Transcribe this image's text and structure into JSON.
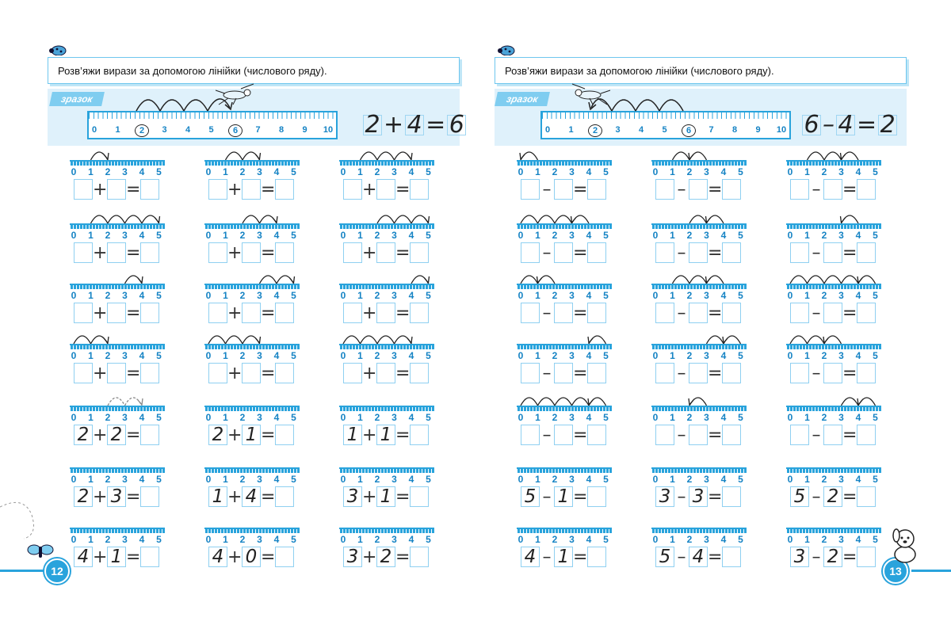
{
  "instruction": "Розв’яжи вирази за допомогою лінійки (числового ряду).",
  "sample_label": "зразок",
  "big_ruler_labels": [
    "0",
    "1",
    "2",
    "3",
    "4",
    "5",
    "6",
    "7",
    "8",
    "9",
    "10"
  ],
  "small_ruler_labels": [
    "0",
    "1",
    "2",
    "3",
    "4",
    "5"
  ],
  "left": {
    "page_number": "12",
    "sample": {
      "a": "2",
      "op": "+",
      "b": "4",
      "eq": "=",
      "result": "6",
      "circled": [
        2,
        6
      ]
    },
    "exercises": [
      [
        {
          "op": "+",
          "a": "",
          "b": "",
          "arcs": [
            [
              1,
              2
            ]
          ]
        },
        {
          "op": "+",
          "a": "",
          "b": "",
          "arcs": [
            [
              1,
              2
            ],
            [
              2,
              3
            ]
          ]
        },
        {
          "op": "+",
          "a": "",
          "b": "",
          "arcs": [
            [
              1,
              2
            ],
            [
              2,
              3
            ],
            [
              3,
              4
            ]
          ]
        }
      ],
      [
        {
          "op": "+",
          "a": "",
          "b": "",
          "arcs": [
            [
              1,
              2
            ],
            [
              2,
              3
            ],
            [
              3,
              4
            ],
            [
              4,
              5
            ]
          ]
        },
        {
          "op": "+",
          "a": "",
          "b": "",
          "arcs": [
            [
              2,
              3
            ],
            [
              3,
              4
            ]
          ]
        },
        {
          "op": "+",
          "a": "",
          "b": "",
          "arcs": [
            [
              2,
              3
            ],
            [
              3,
              4
            ],
            [
              4,
              5
            ]
          ]
        }
      ],
      [
        {
          "op": "+",
          "a": "",
          "b": "",
          "arcs": [
            [
              3,
              4
            ]
          ]
        },
        {
          "op": "+",
          "a": "",
          "b": "",
          "arcs": [
            [
              3,
              4
            ],
            [
              4,
              5
            ]
          ]
        },
        {
          "op": "+",
          "a": "",
          "b": "",
          "arcs": [
            [
              4,
              5
            ]
          ]
        }
      ],
      [
        {
          "op": "+",
          "a": "",
          "b": "",
          "arcs": [
            [
              0,
              1
            ],
            [
              1,
              2
            ]
          ]
        },
        {
          "op": "+",
          "a": "",
          "b": "",
          "arcs": [
            [
              0,
              1
            ],
            [
              1,
              2
            ],
            [
              2,
              3
            ]
          ]
        },
        {
          "op": "+",
          "a": "",
          "b": "",
          "arcs": [
            [
              0,
              1
            ],
            [
              1,
              2
            ],
            [
              2,
              3
            ],
            [
              3,
              4
            ]
          ]
        }
      ],
      [
        {
          "op": "+",
          "a": "2",
          "b": "2",
          "arcs": [
            [
              2,
              3
            ],
            [
              3,
              4
            ]
          ],
          "dashed": true
        },
        {
          "op": "+",
          "a": "2",
          "b": "1",
          "arcs": []
        },
        {
          "op": "+",
          "a": "1",
          "b": "1",
          "arcs": []
        }
      ],
      [
        {
          "op": "+",
          "a": "2",
          "b": "3",
          "arcs": []
        },
        {
          "op": "+",
          "a": "1",
          "b": "4",
          "arcs": []
        },
        {
          "op": "+",
          "a": "3",
          "b": "1",
          "arcs": []
        }
      ],
      [
        {
          "op": "+",
          "a": "4",
          "b": "1",
          "arcs": []
        },
        {
          "op": "+",
          "a": "4",
          "b": "0",
          "arcs": []
        },
        {
          "op": "+",
          "a": "3",
          "b": "2",
          "arcs": []
        }
      ]
    ]
  },
  "right": {
    "page_number": "13",
    "sample": {
      "a": "6",
      "op": "–",
      "b": "4",
      "eq": "=",
      "result": "2",
      "circled": [
        2,
        6
      ]
    },
    "exercises": [
      [
        {
          "op": "–",
          "a": "",
          "b": "",
          "arcs": [
            [
              1,
              0
            ]
          ]
        },
        {
          "op": "–",
          "a": "",
          "b": "",
          "arcs": [
            [
              2,
              1
            ],
            [
              3,
              2
            ]
          ]
        },
        {
          "op": "–",
          "a": "",
          "b": "",
          "arcs": [
            [
              2,
              1
            ],
            [
              3,
              2
            ],
            [
              4,
              3
            ]
          ]
        }
      ],
      [
        {
          "op": "–",
          "a": "",
          "b": "",
          "arcs": [
            [
              1,
              0
            ],
            [
              2,
              1
            ],
            [
              3,
              2
            ],
            [
              4,
              3
            ]
          ]
        },
        {
          "op": "–",
          "a": "",
          "b": "",
          "arcs": [
            [
              3,
              2
            ],
            [
              4,
              3
            ]
          ]
        },
        {
          "op": "–",
          "a": "",
          "b": "",
          "arcs": [
            [
              4,
              3
            ]
          ]
        }
      ],
      [
        {
          "op": "–",
          "a": "",
          "b": "",
          "arcs": [
            [
              1,
              0
            ],
            [
              2,
              1
            ]
          ]
        },
        {
          "op": "–",
          "a": "",
          "b": "",
          "arcs": [
            [
              2,
              1
            ],
            [
              3,
              2
            ],
            [
              4,
              3
            ]
          ]
        },
        {
          "op": "–",
          "a": "",
          "b": "",
          "arcs": [
            [
              1,
              0
            ],
            [
              2,
              1
            ],
            [
              3,
              2
            ],
            [
              4,
              3
            ],
            [
              5,
              4
            ]
          ]
        }
      ],
      [
        {
          "op": "–",
          "a": "",
          "b": "",
          "arcs": [
            [
              5,
              4
            ]
          ]
        },
        {
          "op": "–",
          "a": "",
          "b": "",
          "arcs": [
            [
              4,
              3
            ],
            [
              5,
              4
            ]
          ]
        },
        {
          "op": "–",
          "a": "",
          "b": "",
          "arcs": [
            [
              1,
              0
            ],
            [
              2,
              1
            ],
            [
              3,
              2
            ]
          ]
        }
      ],
      [
        {
          "op": "–",
          "a": "",
          "b": "",
          "arcs": [
            [
              1,
              0
            ],
            [
              2,
              1
            ],
            [
              3,
              2
            ],
            [
              4,
              3
            ],
            [
              5,
              4
            ]
          ]
        },
        {
          "op": "–",
          "a": "",
          "b": "",
          "arcs": [
            [
              3,
              2
            ]
          ]
        },
        {
          "op": "–",
          "a": "",
          "b": "",
          "arcs": [
            [
              4,
              3
            ],
            [
              5,
              4
            ]
          ]
        }
      ],
      [
        {
          "op": "–",
          "a": "5",
          "b": "1",
          "arcs": []
        },
        {
          "op": "–",
          "a": "3",
          "b": "3",
          "arcs": []
        },
        {
          "op": "–",
          "a": "5",
          "b": "2",
          "arcs": []
        }
      ],
      [
        {
          "op": "–",
          "a": "4",
          "b": "1",
          "arcs": []
        },
        {
          "op": "–",
          "a": "5",
          "b": "4",
          "arcs": []
        },
        {
          "op": "–",
          "a": "3",
          "b": "2",
          "arcs": []
        }
      ]
    ]
  }
}
